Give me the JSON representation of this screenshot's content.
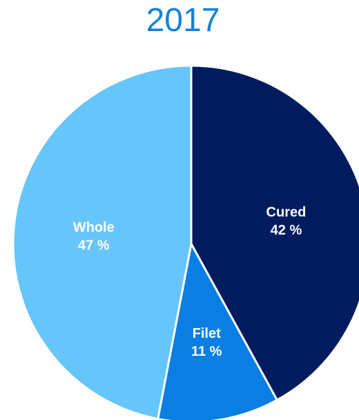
{
  "chart_data": {
    "type": "pie",
    "title": "2017",
    "slices": [
      {
        "label": "Cured",
        "value": 42,
        "display": "42 %",
        "color": "#001c5e"
      },
      {
        "label": "Filet",
        "value": 11,
        "display": "11 %",
        "color": "#0a7ee3"
      },
      {
        "label": "Whole",
        "value": 47,
        "display": "47 %",
        "color": "#66c5fb"
      }
    ],
    "start_angle_deg": 0,
    "direction": "clockwise",
    "slice_border_color": "#ffffff",
    "title_color": "#1481d8"
  }
}
